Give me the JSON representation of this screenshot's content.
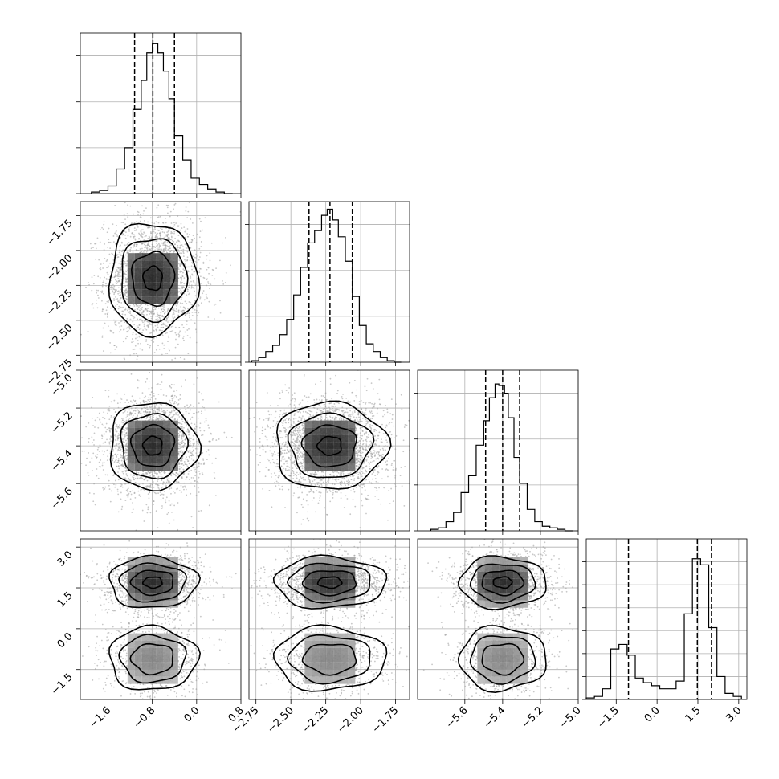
{
  "chart_data": {
    "type": "corner",
    "parameters": [
      {
        "range": [
          -2.1,
          0.8
        ],
        "ticks": [
          -1.6,
          -0.8,
          0.0,
          0.8
        ],
        "tick_labels": [
          "−1.6",
          "−0.8",
          "0.0",
          "0.8"
        ],
        "quantiles": [
          -1.12,
          -0.79,
          -0.4
        ],
        "hist_edges": [
          -1.9,
          -1.75,
          -1.6,
          -1.45,
          -1.3,
          -1.15,
          -1.0,
          -0.9,
          -0.8,
          -0.7,
          -0.6,
          -0.5,
          -0.4,
          -0.25,
          -0.1,
          0.05,
          0.2,
          0.35,
          0.5,
          0.65
        ],
        "hist_counts": [
          0.01,
          0.02,
          0.05,
          0.16,
          0.3,
          0.55,
          0.74,
          0.92,
          0.98,
          0.92,
          0.8,
          0.62,
          0.38,
          0.22,
          0.1,
          0.06,
          0.03,
          0.01,
          0.0
        ],
        "hist_ticks": [
          0.0,
          0.3,
          0.6,
          0.9
        ]
      },
      {
        "range": [
          -2.8,
          -1.65
        ],
        "ticks": [
          -2.75,
          -2.5,
          -2.25,
          -2.0,
          -1.75
        ],
        "tick_labels": [
          "−2.75",
          "−2.50",
          "−2.25",
          "−2.00",
          "−1.75"
        ],
        "quantiles": [
          -2.37,
          -2.22,
          -2.06
        ],
        "hist_edges": [
          -2.78,
          -2.73,
          -2.68,
          -2.63,
          -2.58,
          -2.53,
          -2.48,
          -2.43,
          -2.38,
          -2.33,
          -2.28,
          -2.24,
          -2.2,
          -2.16,
          -2.11,
          -2.06,
          -2.01,
          -1.96,
          -1.91,
          -1.86,
          -1.81,
          -1.76,
          -1.71
        ],
        "hist_counts": [
          0.01,
          0.03,
          0.07,
          0.11,
          0.18,
          0.28,
          0.44,
          0.62,
          0.78,
          0.86,
          0.96,
          1.0,
          0.93,
          0.82,
          0.66,
          0.43,
          0.24,
          0.12,
          0.07,
          0.03,
          0.01,
          0.0
        ],
        "hist_ticks": [
          0.0,
          0.3,
          0.6,
          0.9
        ]
      },
      {
        "range": [
          -5.85,
          -5.0
        ],
        "ticks": [
          -5.6,
          -5.4,
          -5.2,
          -5.0
        ],
        "tick_labels": [
          "−5.6",
          "−5.4",
          "−5.2",
          "−5.0"
        ],
        "quantiles": [
          -5.49,
          -5.4,
          -5.31
        ],
        "hist_edges": [
          -5.78,
          -5.74,
          -5.7,
          -5.66,
          -5.62,
          -5.58,
          -5.54,
          -5.5,
          -5.47,
          -5.44,
          -5.42,
          -5.39,
          -5.37,
          -5.34,
          -5.31,
          -5.27,
          -5.23,
          -5.19,
          -5.15,
          -5.11,
          -5.07,
          -5.03
        ],
        "hist_counts": [
          0.01,
          0.02,
          0.06,
          0.12,
          0.25,
          0.36,
          0.56,
          0.72,
          0.87,
          0.96,
          0.95,
          0.9,
          0.74,
          0.48,
          0.31,
          0.14,
          0.06,
          0.03,
          0.02,
          0.01,
          0.0
        ],
        "hist_ticks": [
          0.0,
          0.3,
          0.6,
          0.9
        ]
      },
      {
        "range": [
          -2.6,
          3.3
        ],
        "ticks": [
          -1.5,
          0.0,
          1.5,
          3.0
        ],
        "tick_labels": [
          "−1.5",
          "0.0",
          "1.5",
          "3.0"
        ],
        "quantiles": [
          -1.05,
          1.48,
          2.0
        ],
        "hist_edges": [
          -2.6,
          -2.3,
          -2.0,
          -1.7,
          -1.4,
          -1.1,
          -0.8,
          -0.5,
          -0.2,
          0.1,
          0.4,
          0.7,
          1.0,
          1.3,
          1.6,
          1.9,
          2.2,
          2.5,
          2.8,
          3.1
        ],
        "hist_counts": [
          0.01,
          0.02,
          0.07,
          0.33,
          0.36,
          0.29,
          0.14,
          0.11,
          0.09,
          0.07,
          0.07,
          0.12,
          0.56,
          0.92,
          0.88,
          0.47,
          0.15,
          0.04,
          0.02
        ],
        "hist_ticks": [
          0.0,
          0.15,
          0.3,
          0.45,
          0.6,
          0.75,
          0.9
        ]
      }
    ],
    "pairs": [
      {
        "x": 0,
        "y": 1,
        "mu": [
          [
            -0.79,
            -2.2
          ]
        ],
        "sd": [
          [
            0.38,
            0.19
          ]
        ]
      },
      {
        "x": 0,
        "y": 2,
        "mu": [
          [
            -0.79,
            -5.4
          ]
        ],
        "sd": [
          [
            0.38,
            0.11
          ]
        ]
      },
      {
        "x": 1,
        "y": 2,
        "mu": [
          [
            -2.22,
            -5.4
          ]
        ],
        "sd": [
          [
            0.19,
            0.11
          ]
        ]
      },
      {
        "x": 0,
        "y": 3,
        "mu": [
          [
            -0.79,
            1.7
          ],
          [
            -0.79,
            -1.1
          ]
        ],
        "sd": [
          [
            0.38,
            0.45
          ],
          [
            0.38,
            0.62
          ]
        ]
      },
      {
        "x": 1,
        "y": 3,
        "mu": [
          [
            -2.22,
            1.7
          ],
          [
            -2.22,
            -1.1
          ]
        ],
        "sd": [
          [
            0.19,
            0.45
          ],
          [
            0.19,
            0.62
          ]
        ]
      },
      {
        "x": 2,
        "y": 3,
        "mu": [
          [
            -5.4,
            1.7
          ],
          [
            -5.4,
            -1.1
          ]
        ],
        "sd": [
          [
            0.11,
            0.45
          ],
          [
            0.11,
            0.62
          ]
        ]
      }
    ],
    "grid": true
  }
}
